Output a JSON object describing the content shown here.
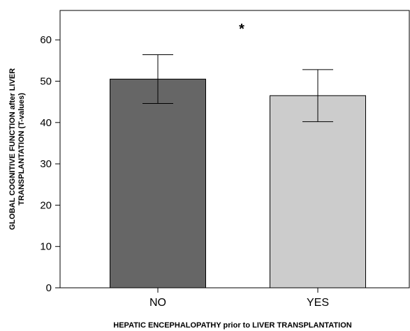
{
  "chart_data": {
    "type": "bar",
    "categories": [
      "NO",
      "YES"
    ],
    "values": [
      50.5,
      46.5
    ],
    "error_bars": [
      {
        "low": 44.6,
        "high": 56.4
      },
      {
        "low": 40.2,
        "high": 52.8
      }
    ],
    "colors": [
      "#666666",
      "#cccccc"
    ],
    "ylim": [
      0,
      70
    ],
    "yticks": [
      0,
      10,
      20,
      30,
      40,
      50,
      60
    ],
    "ytick_labels": [
      "0",
      "10",
      "20",
      "30",
      "40",
      "50",
      "60"
    ],
    "ylabel_line1": "GLOBAL COGNITIVE FUNCTION after LIVER",
    "ylabel_line2": "TRANSPLANTATION (T-values)",
    "xlabel": "HEPATIC ENCEPHALOPATHY prior to LIVER TRANSPLANTATION",
    "annotation": "*",
    "grid": false
  }
}
